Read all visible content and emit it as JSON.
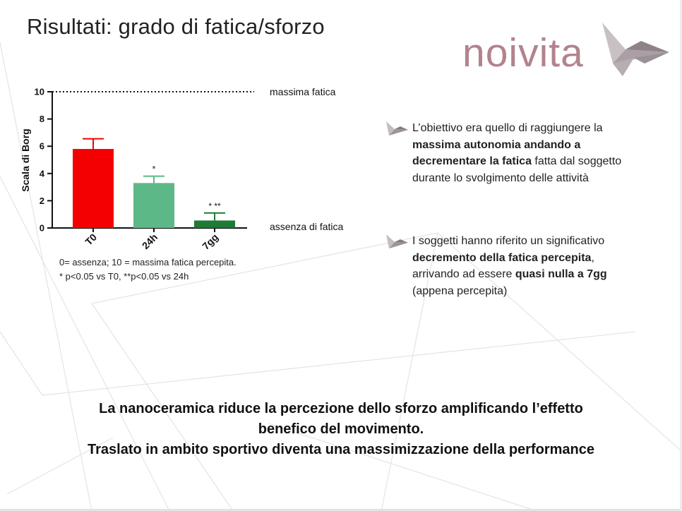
{
  "slide": {
    "title": "Risultati: grado di fatica/sforzo",
    "logo": {
      "text": "noivita",
      "icon": "origami-bird-icon",
      "color": "#b3838d"
    },
    "notes": {
      "line1": "0= assenza; 10 = massima fatica percepita.",
      "line2": "* p<0.05 vs T0, **p<0.05 vs 24h"
    },
    "bullets": [
      {
        "icon": "origami-bird-arrow-icon",
        "parts": [
          {
            "text": "L’obiettivo era quello di raggiungere la ",
            "bold": false
          },
          {
            "text": "massima autonomia andando a decrementare la fatica",
            "bold": true
          },
          {
            "text": " fatta dal soggetto durante lo svolgimento delle attività",
            "bold": false
          }
        ]
      },
      {
        "icon": "origami-bird-arrow-icon",
        "parts": [
          {
            "text": "I soggetti hanno riferito un significativo ",
            "bold": false
          },
          {
            "text": "decremento della fatica percepita",
            "bold": true
          },
          {
            "text": ", arrivando ad essere ",
            "bold": false
          },
          {
            "text": "quasi nulla a 7gg",
            "bold": true
          },
          {
            "text": " (appena percepita)",
            "bold": false
          }
        ]
      }
    ],
    "conclusion": {
      "line1": "La nanoceramica riduce la percezione dello sforzo amplificando l’effetto",
      "line2": "benefico del movimento.",
      "line3": "Traslato in ambito sportivo diventa una massimizzazione della performance"
    }
  },
  "chart_data": {
    "type": "bar",
    "ylabel": "Scala di Borg",
    "xlabel": "",
    "categories": [
      "T0",
      "24h",
      "7gg"
    ],
    "values": [
      5.8,
      3.3,
      0.55
    ],
    "errors": [
      0.75,
      0.5,
      0.55
    ],
    "significance": [
      "",
      "*",
      "* **"
    ],
    "colors": [
      "#f40000",
      "#5db888",
      "#1e7a34"
    ],
    "ylim": [
      0,
      10
    ],
    "yticks": [
      0,
      2,
      4,
      6,
      8,
      10
    ],
    "reference_lines": [
      {
        "y": 10,
        "label": "massima fatica",
        "style": "dotted"
      },
      {
        "y": 0,
        "label": "assenza di fatica",
        "style": "axis"
      }
    ],
    "grid": false,
    "legend": "none"
  }
}
